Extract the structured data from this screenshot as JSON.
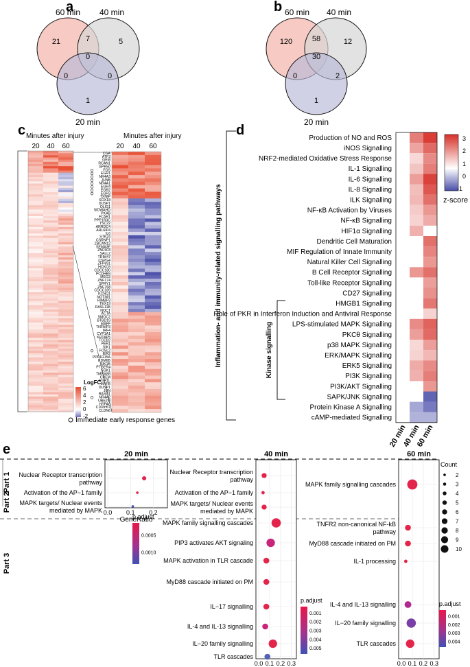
{
  "panels": {
    "a": {
      "label": "a",
      "sets": [
        "60 min",
        "40 min",
        "20 min"
      ],
      "counts": {
        "only60": "21",
        "only40": "5",
        "only20": "1",
        "s60_40": "7",
        "s60_20": "0",
        "s40_20": "0",
        "all": "0"
      }
    },
    "b": {
      "label": "b",
      "sets": [
        "60 min",
        "40 min",
        "20 min"
      ],
      "counts": {
        "only60": "120",
        "only40": "12",
        "only20": "1",
        "s60_40": "58",
        "s60_20": "0",
        "s40_20": "2",
        "all": "30"
      }
    },
    "c": {
      "label": "c",
      "header_left": "Minutes after injury",
      "header_right": "Minutes after injury",
      "cols": [
        "20",
        "40",
        "60"
      ],
      "genes": [
        "CGA",
        "ATF3",
        "GEM",
        "RCAN1",
        "GPR50",
        "FOS",
        "EGR1",
        "NR4A3",
        "JUNB",
        "NR4A1",
        "EGR4",
        "EGR2",
        "EGR3",
        "TXNIP",
        "SOX18",
        "DUSP1",
        "OLIG1",
        "SIDWAHD",
        "PKAB",
        "FCAR1",
        "PPP1R3C",
        "TSC22",
        "ARRDC4",
        "ARL6IP4",
        "IL6",
        "STK24",
        "CSRNP1",
        "ZBCAN12",
        "SEMA3E",
        "ZNF503",
        "SALL2",
        "TRIM47",
        "CSPG4",
        "ZFP691",
        "HOXC6",
        "CDCC180",
        "PCDHB9",
        "MEG3",
        "ZNF174",
        "SPRY1",
        "ZNF768",
        "CDCC189",
        "KCNQ1",
        "NGTIM1",
        "RIMBP3",
        "TEX19",
        "RASL11B",
        "NOCT",
        "ACTA",
        "SMOC2",
        "BTBD19",
        "MAFF",
        "TNFAIP3",
        "IRF4",
        "CYP1A1",
        "KRTAP5",
        "TCEB2",
        "PER1",
        "SIK1",
        "FOSL2",
        "IER2",
        "PPP1R15A",
        "KDM6B",
        "SIK1B",
        "PTGER4",
        "SGK1",
        "TMEM88",
        "CREM",
        "EGR1L",
        "MAFB",
        "DUSP1",
        "JUN",
        "RASD1",
        "NR4A2",
        "UBE2M",
        "HSPA8",
        "C10orf67",
        "CLDN6"
      ],
      "legend_title": "LogFC",
      "legend_ticks": [
        "6",
        "4",
        "2",
        "0",
        "-2"
      ],
      "note": "Immediate early response genes"
    },
    "d": {
      "label": "d",
      "group1": "Inflammation- and immunity-related signalling pathways",
      "group2": "Kinase signalling",
      "cols": [
        "20 min",
        "40 min",
        "60 min"
      ],
      "legend_title": "z-score",
      "legend_ticks": [
        "3",
        "2",
        "1",
        "0",
        "-1"
      ],
      "rows": [
        {
          "name": "Production of NO and ROS",
          "z": [
            0,
            2.0,
            3.0
          ]
        },
        {
          "name": "iNOS Signalling",
          "z": [
            0,
            1.4,
            2.3
          ]
        },
        {
          "name": "NRF2-mediated Oxidative Stress Response",
          "z": [
            0,
            0.6,
            1.8
          ]
        },
        {
          "name": "IL-1 Signalling",
          "z": [
            0,
            0.9,
            2.0
          ]
        },
        {
          "name": "IL-6 Signalling",
          "z": [
            0,
            1.5,
            2.9
          ]
        },
        {
          "name": "IL-8 Signalling",
          "z": [
            0,
            1.0,
            2.6
          ]
        },
        {
          "name": "ILK Signalling",
          "z": [
            0,
            1.1,
            2.2
          ]
        },
        {
          "name": "NF-κB Activation by Viruses",
          "z": [
            0,
            0.8,
            1.6
          ]
        },
        {
          "name": "NF-κB Signalling",
          "z": [
            0,
            0.7,
            1.3
          ]
        },
        {
          "name": "HIF1α Signalling",
          "z": [
            0,
            1.2,
            0
          ]
        },
        {
          "name": "Dendritic Cell Maturation",
          "z": [
            0,
            0,
            2.2
          ]
        },
        {
          "name": "MIF Regulation of Innate Immunity",
          "z": [
            0,
            0,
            1.9
          ]
        },
        {
          "name": "Natural Killer Cell Signalling",
          "z": [
            0,
            0,
            1.6
          ]
        },
        {
          "name": "B Cell Receptor Signalling",
          "z": [
            0,
            1.6,
            2.2
          ]
        },
        {
          "name": "Toll-like Receptor Signalling",
          "z": [
            0,
            0,
            1.5
          ]
        },
        {
          "name": "CD27 Signalling",
          "z": [
            0,
            0,
            1.7
          ]
        },
        {
          "name": "HMGB1 Signalling",
          "z": [
            0,
            0,
            2.1
          ]
        },
        {
          "name": "Role of PKR in Interferon Induction and Antiviral Response",
          "z": [
            0,
            0,
            0.7
          ]
        },
        {
          "name": "LPS-stimulated MAPK Signalling",
          "z": [
            0,
            1.8,
            2.4
          ]
        },
        {
          "name": "PKCθ Signalling",
          "z": [
            0,
            1.5,
            2.3
          ]
        },
        {
          "name": "p38 MAPK Signalling",
          "z": [
            0,
            0.6,
            1.5
          ]
        },
        {
          "name": "ERK/MAPK Signalling",
          "z": [
            0,
            0.7,
            1.1
          ]
        },
        {
          "name": "ERK5 Signalling",
          "z": [
            0,
            1.3,
            1.8
          ]
        },
        {
          "name": "PI3K Signalling",
          "z": [
            0,
            1.2,
            2.0
          ]
        },
        {
          "name": "PI3K/AKT Signalling",
          "z": [
            0,
            0,
            1.6
          ]
        },
        {
          "name": "SAPK/JNK Signalling",
          "z": [
            0,
            0,
            -1.4
          ]
        },
        {
          "name": "Protein Kinase A Signalling",
          "z": [
            0,
            -0.8,
            -1.2
          ]
        },
        {
          "name": "cAMP-mediated Signalling",
          "z": [
            0,
            -0.7,
            -0.7
          ]
        }
      ]
    },
    "e": {
      "label": "e",
      "parts": [
        "Part 1",
        "Part 2",
        "Part 3"
      ],
      "xlabel": "GeneRatio",
      "count_title": "Count",
      "count_ticks": [
        "2",
        "3",
        "4",
        "5",
        "6",
        "7",
        "8",
        "9",
        "10"
      ],
      "padj_title": "p.adjust",
      "panels": [
        {
          "title": "20 min",
          "ticks": [
            "0.0",
            "0.1",
            "0.2"
          ],
          "xmax": 0.25,
          "padj_ticks": [
            "0.0005",
            "0.0010"
          ],
          "rows": [
            {
              "label": "Nuclear Receptor transcription|pathway",
              "x": 0.16,
              "count": 3,
              "color": "#e2234a"
            },
            {
              "label": "Activation of the AP−1 family",
              "x": 0.13,
              "count": 1,
              "color": "#e2234a"
            },
            {
              "label": "MAPK targets/ Nuclear events|mediated by MAPK",
              "x": 0.11,
              "count": 1,
              "color": "#4a56b0"
            }
          ]
        },
        {
          "title": "40 min",
          "ticks": [
            "0.0",
            "0.1",
            "0.2",
            "0.3"
          ],
          "xmax": 0.32,
          "padj_ticks": [
            "0.001",
            "0.002",
            "0.003",
            "0.004",
            "0.005"
          ],
          "rows": [
            {
              "label": "Nuclear Receptor transcription|pathway",
              "x": 0.05,
              "count": 4,
              "color": "#e3254c"
            },
            {
              "label": "Activation of the AP−1 family",
              "x": 0.04,
              "count": 2,
              "color": "#e3254c"
            },
            {
              "label": "MAPK targets/ Nuclear events|mediated by MAPK",
              "x": 0.05,
              "count": 4,
              "color": "#e3254c"
            },
            {
              "label": "MAPK family signalling cascades",
              "x": 0.16,
              "count": 9,
              "color": "#e3254c"
            },
            {
              "label": "PIP3 activates AKT signaling",
              "x": 0.11,
              "count": 8,
              "color": "#c8257a"
            },
            {
              "label": "MAPK activation in TLR cascade",
              "x": 0.07,
              "count": 5,
              "color": "#e3254c"
            },
            {
              "label": "MyD88 cascade initiated on PM",
              "x": 0.07,
              "count": 5,
              "color": "#e3254c"
            },
            {
              "label": "IL−17 signalling",
              "x": 0.07,
              "count": 5,
              "color": "#e3254c"
            },
            {
              "label": "IL-4 and IL-13 signalling",
              "x": 0.06,
              "count": 5,
              "color": "#c8257a"
            },
            {
              "label": "IL−20 family signalling",
              "x": 0.13,
              "count": 8,
              "color": "#e3254c"
            },
            {
              "label": "TLR cascades",
              "x": 0.08,
              "count": 5,
              "color": "#5560b5"
            }
          ]
        },
        {
          "title": "60 min",
          "ticks": [
            "0.0",
            "0.1",
            "0.2",
            "0.3"
          ],
          "xmax": 0.32,
          "padj_ticks": [
            "0.001",
            "0.002",
            "0.003",
            "0.004"
          ],
          "rows": [
            {
              "label": "MAPK family signalling cascades",
              "x": 0.1,
              "count": 10,
              "color": "#e3254c"
            },
            {
              "label": "TNFR2 non-canonical NF-kB|pathway",
              "x": 0.06,
              "count": 5,
              "color": "#e3254c"
            },
            {
              "label": "MyD88 cascade initiated on PM",
              "x": 0.06,
              "count": 5,
              "color": "#e3254c"
            },
            {
              "label": "IL-1 processing",
              "x": 0.04,
              "count": 2,
              "color": "#e3254c"
            },
            {
              "label": "IL-4 and IL-13 signalling",
              "x": 0.06,
              "count": 6,
              "color": "#b02a90"
            },
            {
              "label": "IL−20 family signalling",
              "x": 0.09,
              "count": 9,
              "color": "#7a3fa6"
            },
            {
              "label": "TLR cascades",
              "x": 0.08,
              "count": 8,
              "color": "#e3254c"
            }
          ]
        }
      ]
    }
  }
}
